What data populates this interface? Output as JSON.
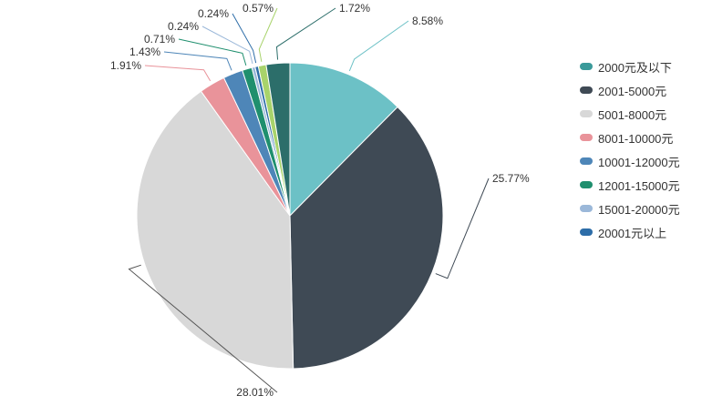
{
  "chart_data": {
    "type": "pie",
    "title": "",
    "legend_position": "right",
    "slices": [
      {
        "name": "2000元及以下",
        "value": 8.58,
        "label": "8.58%",
        "color": "#6cc1c6"
      },
      {
        "name": "2001-5000元",
        "value": 25.77,
        "label": "25.77%",
        "color": "#3f4a55"
      },
      {
        "name": "5001-8000元",
        "value": 28.01,
        "label": "28.01%",
        "color": "#d8d8d8"
      },
      {
        "name": "8001-10000元",
        "value": 1.91,
        "label": "1.91%",
        "color": "#e9939a"
      },
      {
        "name": "10001-12000元",
        "value": 1.43,
        "label": "1.43%",
        "color": "#4e86b8"
      },
      {
        "name": "12001-15000元",
        "value": 0.71,
        "label": "0.71%",
        "color": "#1f8f6e"
      },
      {
        "name": "15001-20000元",
        "value": 0.24,
        "label": "0.24%",
        "color": "#9bb8d9"
      },
      {
        "name": "20001元以上",
        "value": 0.24,
        "label": "0.24%",
        "color": "#2d6da8"
      },
      {
        "name": "",
        "value": 0.57,
        "label": "0.57%",
        "color": "#a8d36b"
      },
      {
        "name": "",
        "value": 1.72,
        "label": "1.72%",
        "color": "#2c6e6a"
      }
    ]
  },
  "legend": {
    "items": [
      {
        "label": "2000元及以下",
        "color": "#3a9a9a"
      },
      {
        "label": "2001-5000元",
        "color": "#3f4a55"
      },
      {
        "label": "5001-8000元",
        "color": "#d8d8d8"
      },
      {
        "label": "8001-10000元",
        "color": "#e9939a"
      },
      {
        "label": "10001-12000元",
        "color": "#4e86b8"
      },
      {
        "label": "12001-15000元",
        "color": "#1f8f6e"
      },
      {
        "label": "15001-20000元",
        "color": "#9bb8d9"
      },
      {
        "label": "20001元以上",
        "color": "#2d6da8"
      }
    ]
  }
}
